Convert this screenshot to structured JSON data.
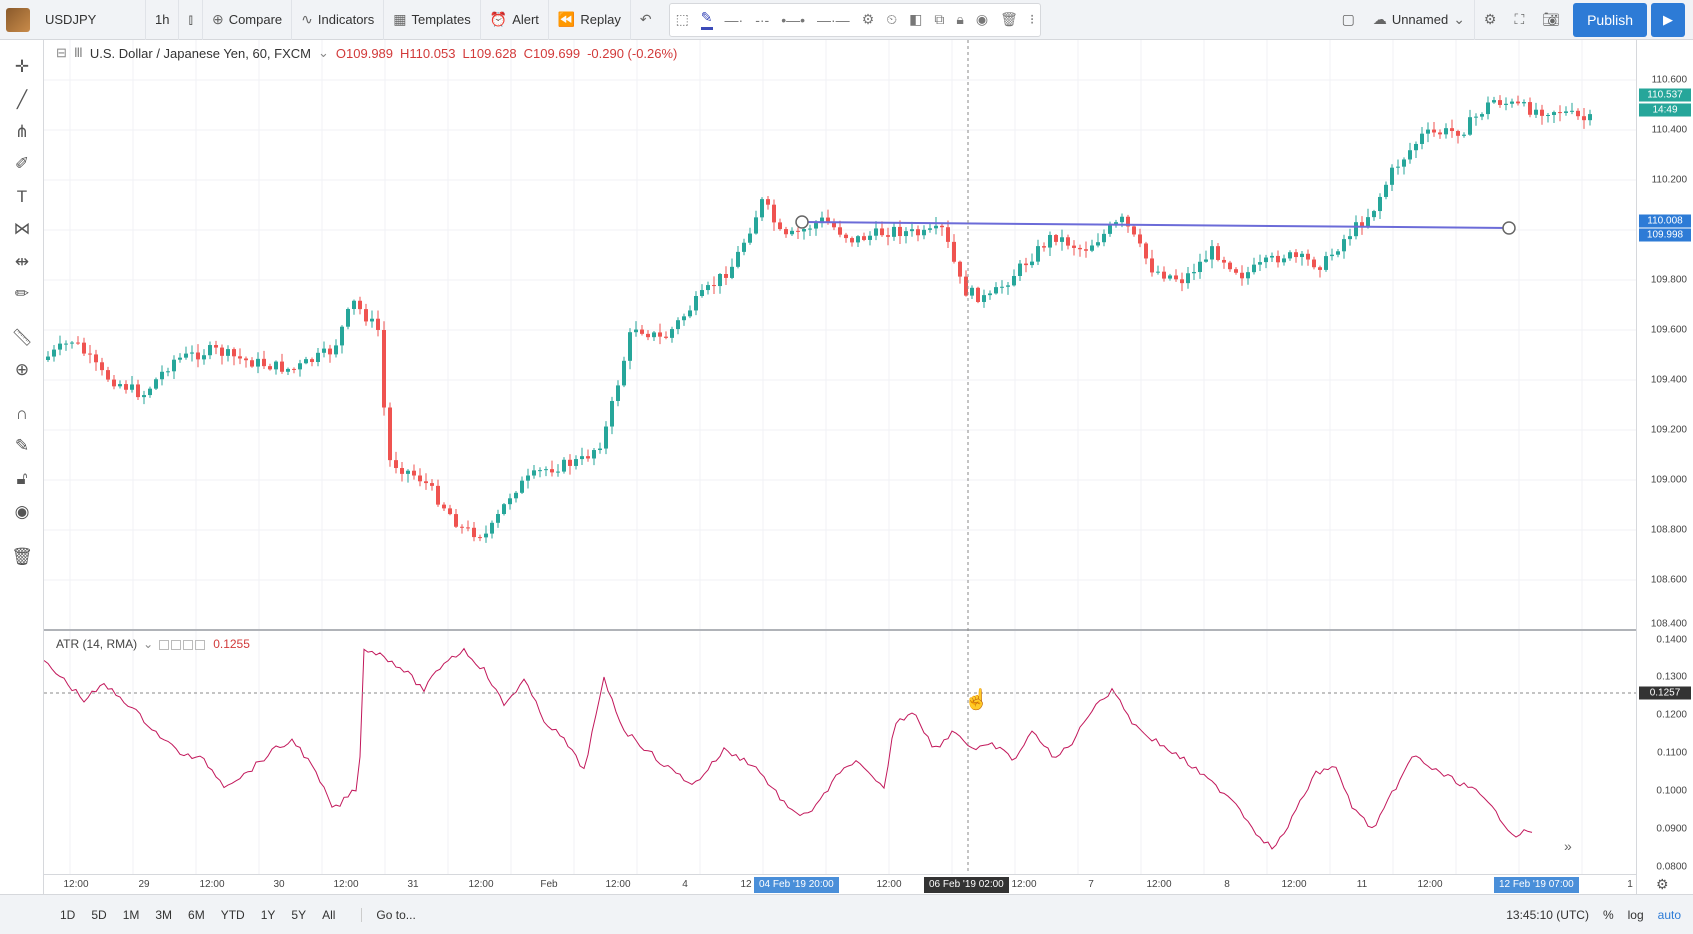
{
  "toolbar": {
    "symbol": "USDJPY",
    "interval": "1h",
    "compare": "Compare",
    "indicators": "Indicators",
    "templates": "Templates",
    "alert": "Alert",
    "replay": "Replay",
    "layout_name": "Unnamed",
    "publish": "Publish"
  },
  "legend": {
    "title": "U.S. Dollar / Japanese Yen, 60, FXCM",
    "open": "O109.989",
    "high": "H110.053",
    "low": "L109.628",
    "close": "C109.699",
    "change": "-0.290 (-0.26%)"
  },
  "atr": {
    "name": "ATR (14, RMA)",
    "value": "0.1255"
  },
  "price_axis": {
    "labels": [
      "110.600",
      "110.400",
      "110.200",
      "110.000",
      "109.800",
      "109.600",
      "109.400",
      "109.200",
      "109.000",
      "108.800",
      "108.600",
      "108.400"
    ],
    "last_price": "110.537",
    "countdown": "14:49",
    "line_price_1": "110.008",
    "line_price_2": "109.998",
    "atr_labels": [
      "0.1400",
      "0.1300",
      "0.1200",
      "0.1100",
      "0.1000",
      "0.0900",
      "0.0800"
    ],
    "atr_crosshair": "0.1257"
  },
  "time_axis": {
    "labels": [
      "12:00",
      "29",
      "12:00",
      "30",
      "12:00",
      "31",
      "12:00",
      "Feb",
      "12:00",
      "4",
      "12",
      "12:00",
      "12:00",
      "7",
      "12:00",
      "8",
      "12:00",
      "11",
      "12:00",
      "1"
    ],
    "highlight_left": "04 Feb '19   20:00",
    "highlight_cursor": "06 Feb '19   02:00",
    "highlight_right": "12 Feb '19   07:00"
  },
  "bottom": {
    "ranges": [
      "1D",
      "5D",
      "1M",
      "3M",
      "6M",
      "YTD",
      "1Y",
      "5Y",
      "All"
    ],
    "goto": "Go to...",
    "time": "13:45:10 (UTC)",
    "pct": "%",
    "log": "log",
    "auto": "auto"
  },
  "colors": {
    "up": "#26a69a",
    "down": "#ef5350",
    "atr_line": "#c2185b",
    "hline": "#6b6bd8",
    "accent": "#2d7bd6"
  },
  "chart_data": [
    {
      "type": "candlestick",
      "title": "U.S. Dollar / Japanese Yen, 60, FXCM",
      "ylim": [
        108.4,
        110.6
      ],
      "horizontal_line": 110.0
    },
    {
      "type": "line",
      "title": "ATR (14, RMA)",
      "ylim": [
        0.08,
        0.14
      ],
      "current": 0.1255
    }
  ]
}
